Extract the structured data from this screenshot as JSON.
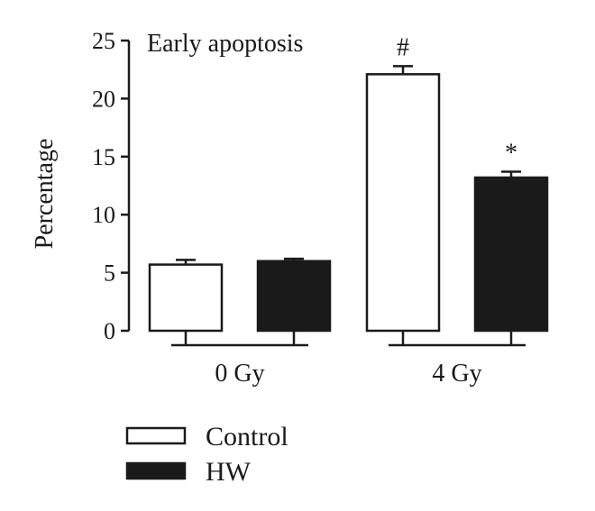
{
  "chart_data": {
    "type": "bar",
    "title": "Early apoptosis",
    "ylabel": "Percentage",
    "xlabel": "",
    "ylim": [
      0,
      25
    ],
    "yticks": [
      0,
      5,
      10,
      15,
      20,
      25
    ],
    "categories": [
      "0 Gy",
      "4 Gy"
    ],
    "series": [
      {
        "name": "Control",
        "values": [
          5.7,
          22.1
        ],
        "errors": [
          0.4,
          0.7
        ],
        "color": "#ffffff"
      },
      {
        "name": "HW",
        "values": [
          6.0,
          13.2
        ],
        "errors": [
          0.2,
          0.5
        ],
        "color": "#1a1a1a"
      }
    ],
    "annotations": [
      {
        "text": "#",
        "category": "4 Gy",
        "series": "Control"
      },
      {
        "text": "*",
        "category": "4 Gy",
        "series": "HW"
      }
    ],
    "legend_position": "bottom-left",
    "grid": false
  }
}
